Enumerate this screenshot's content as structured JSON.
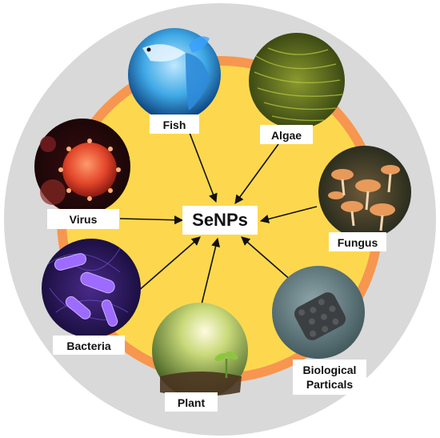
{
  "center": {
    "label": "SeNPs"
  },
  "sources": [
    {
      "id": "fish",
      "label": "Fish",
      "icon": "fish-photo"
    },
    {
      "id": "algae",
      "label": "Algae",
      "icon": "algae-photo"
    },
    {
      "id": "fungus",
      "label": "Fungus",
      "icon": "mushroom-photo"
    },
    {
      "id": "biological",
      "label": "Biological\nParticals",
      "icon": "biological-particle-photo"
    },
    {
      "id": "plant",
      "label": "Plant",
      "icon": "seedling-photo"
    },
    {
      "id": "bacteria",
      "label": "Bacteria",
      "icon": "bacteria-photo"
    },
    {
      "id": "virus",
      "label": "Virus",
      "icon": "virus-photo"
    }
  ],
  "colors": {
    "outer_ring": "#d9d9d9",
    "orange_ring": "#f7964f",
    "inner_fill": "#fdd84e",
    "arrow": "#111111",
    "label_bg": "#ffffff"
  }
}
